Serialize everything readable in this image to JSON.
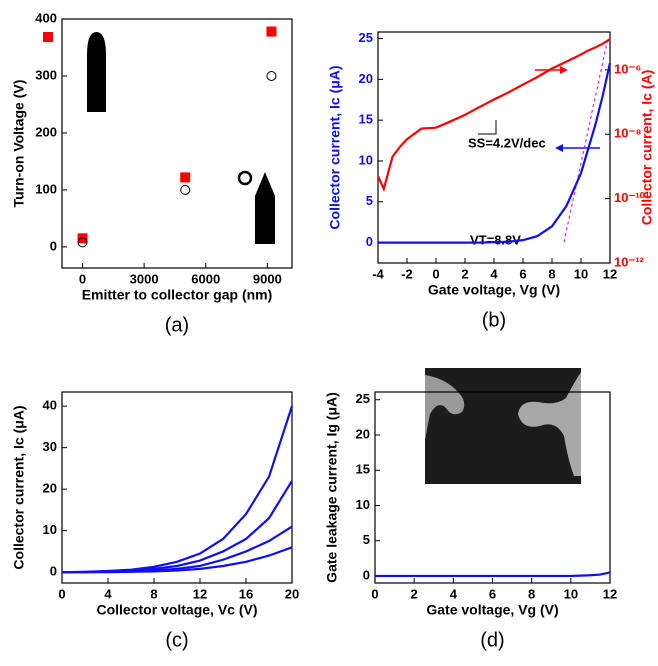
{
  "chart_data": [
    {
      "type": "scatter",
      "label": "(a)",
      "xlabel": "Emitter to collector gap (nm)",
      "ylabel": "Turn-on Voltage (V)",
      "x": [
        0,
        5000,
        9200
      ],
      "series": [
        {
          "color": "#ff0000",
          "marker": "square",
          "values": [
            15,
            122,
            378
          ]
        },
        {
          "color": "#000000",
          "marker": "circle-open",
          "values": [
            8,
            100,
            300
          ]
        }
      ],
      "xlim": [
        -1000,
        10200
      ],
      "xticks": [
        0,
        3000,
        6000,
        9000
      ],
      "ylim": [
        -37,
        400
      ],
      "yticks": [
        0,
        100,
        200,
        300,
        400
      ]
    },
    {
      "type": "line",
      "label": "(b)",
      "xlabel": "Gate voltage, Vg (V)",
      "ylabel": "Collector current, Ic (μA)",
      "y2label": "Collector current, Ic (A)",
      "annotations": [
        "SS=4.2V/dec",
        "VT=8.8V"
      ],
      "ycolor": "#1010ee",
      "y2color": "#ff0000",
      "x": [
        -4,
        -3.6,
        -3,
        -2.5,
        -2,
        -1,
        0,
        1,
        2,
        3,
        4,
        5,
        6,
        7,
        8,
        9,
        10,
        10.5,
        11,
        11.5,
        12
      ],
      "series": [
        {
          "color": "#1010ee",
          "values": [
            0,
            0,
            0,
            0,
            0,
            0,
            0,
            0,
            0,
            0,
            0.05,
            0.1,
            0.3,
            0.8,
            2,
            4.5,
            8.5,
            11.5,
            14.5,
            18,
            22
          ]
        },
        {
          "color": "#ff0000",
          "axis": "y2",
          "values": [
            5e-10,
            2e-10,
            2e-09,
            4e-09,
            7e-09,
            1.5e-08,
            1.6e-08,
            2.5e-08,
            4e-08,
            7e-08,
            1.2e-07,
            2e-07,
            3.5e-07,
            6e-07,
            1.1e-06,
            1.8e-06,
            3e-06,
            4e-06,
            5e-06,
            6.5e-06,
            9e-06
          ]
        }
      ],
      "xlim": [
        -4,
        12
      ],
      "xticks": [
        -4,
        -2,
        0,
        2,
        4,
        6,
        8,
        10,
        12
      ],
      "ylim": [
        -2.5,
        25.8
      ],
      "yticks": [
        0,
        5,
        10,
        15,
        20,
        25
      ],
      "y2log": true,
      "y2lim": [
        1e-12,
        1.5e-05
      ],
      "y2ticks": [
        {
          "value": 1e-12,
          "label": "10⁻¹²"
        },
        {
          "value": 1e-10,
          "label": "10⁻¹⁰"
        },
        {
          "value": 1e-08,
          "label": "10⁻⁸"
        },
        {
          "value": 1e-06,
          "label": "10⁻⁶"
        }
      ]
    },
    {
      "type": "line",
      "label": "(c)",
      "xlabel": "Collector voltage, Vc (V)",
      "ylabel": "Collector current, Ic (μA)",
      "x": [
        0,
        2,
        4,
        6,
        8,
        10,
        12,
        14,
        16,
        18,
        20
      ],
      "series": [
        {
          "color": "#1010ee",
          "values": [
            0,
            0.1,
            0.3,
            0.6,
            1.3,
            2.5,
            4.5,
            8,
            14,
            23,
            40
          ]
        },
        {
          "color": "#1010ee",
          "values": [
            0,
            0.05,
            0.2,
            0.4,
            0.8,
            1.5,
            2.8,
            5,
            8,
            13,
            22
          ]
        },
        {
          "color": "#1010ee",
          "values": [
            0,
            0,
            0.1,
            0.2,
            0.4,
            0.8,
            1.5,
            3,
            5,
            7.5,
            11
          ]
        },
        {
          "color": "#1010ee",
          "values": [
            0,
            0,
            0,
            0.1,
            0.2,
            0.4,
            0.8,
            1.5,
            2.5,
            4,
            6
          ]
        }
      ],
      "xlim": [
        0,
        20
      ],
      "xticks": [
        0,
        4,
        8,
        12,
        16,
        20
      ],
      "ylim": [
        -2.6,
        43.4
      ],
      "yticks": [
        0,
        10,
        20,
        30,
        40
      ]
    },
    {
      "type": "line",
      "label": "(d)",
      "xlabel": "Gate voltage, Vg (V)",
      "ylabel": "Gate leakage current, Ig (μA)",
      "x": [
        0,
        2,
        4,
        6,
        8,
        10,
        10.5,
        11,
        11.5,
        12
      ],
      "series": [
        {
          "color": "#1010ee",
          "values": [
            0,
            0,
            0,
            0,
            0,
            0,
            0.05,
            0.1,
            0.2,
            0.5
          ]
        }
      ],
      "xlim": [
        0,
        12
      ],
      "xticks": [
        0,
        2,
        4,
        6,
        8,
        10,
        12
      ],
      "ylim": [
        -1,
        26.1
      ],
      "yticks": [
        0,
        5,
        10,
        15,
        20,
        25
      ]
    }
  ]
}
